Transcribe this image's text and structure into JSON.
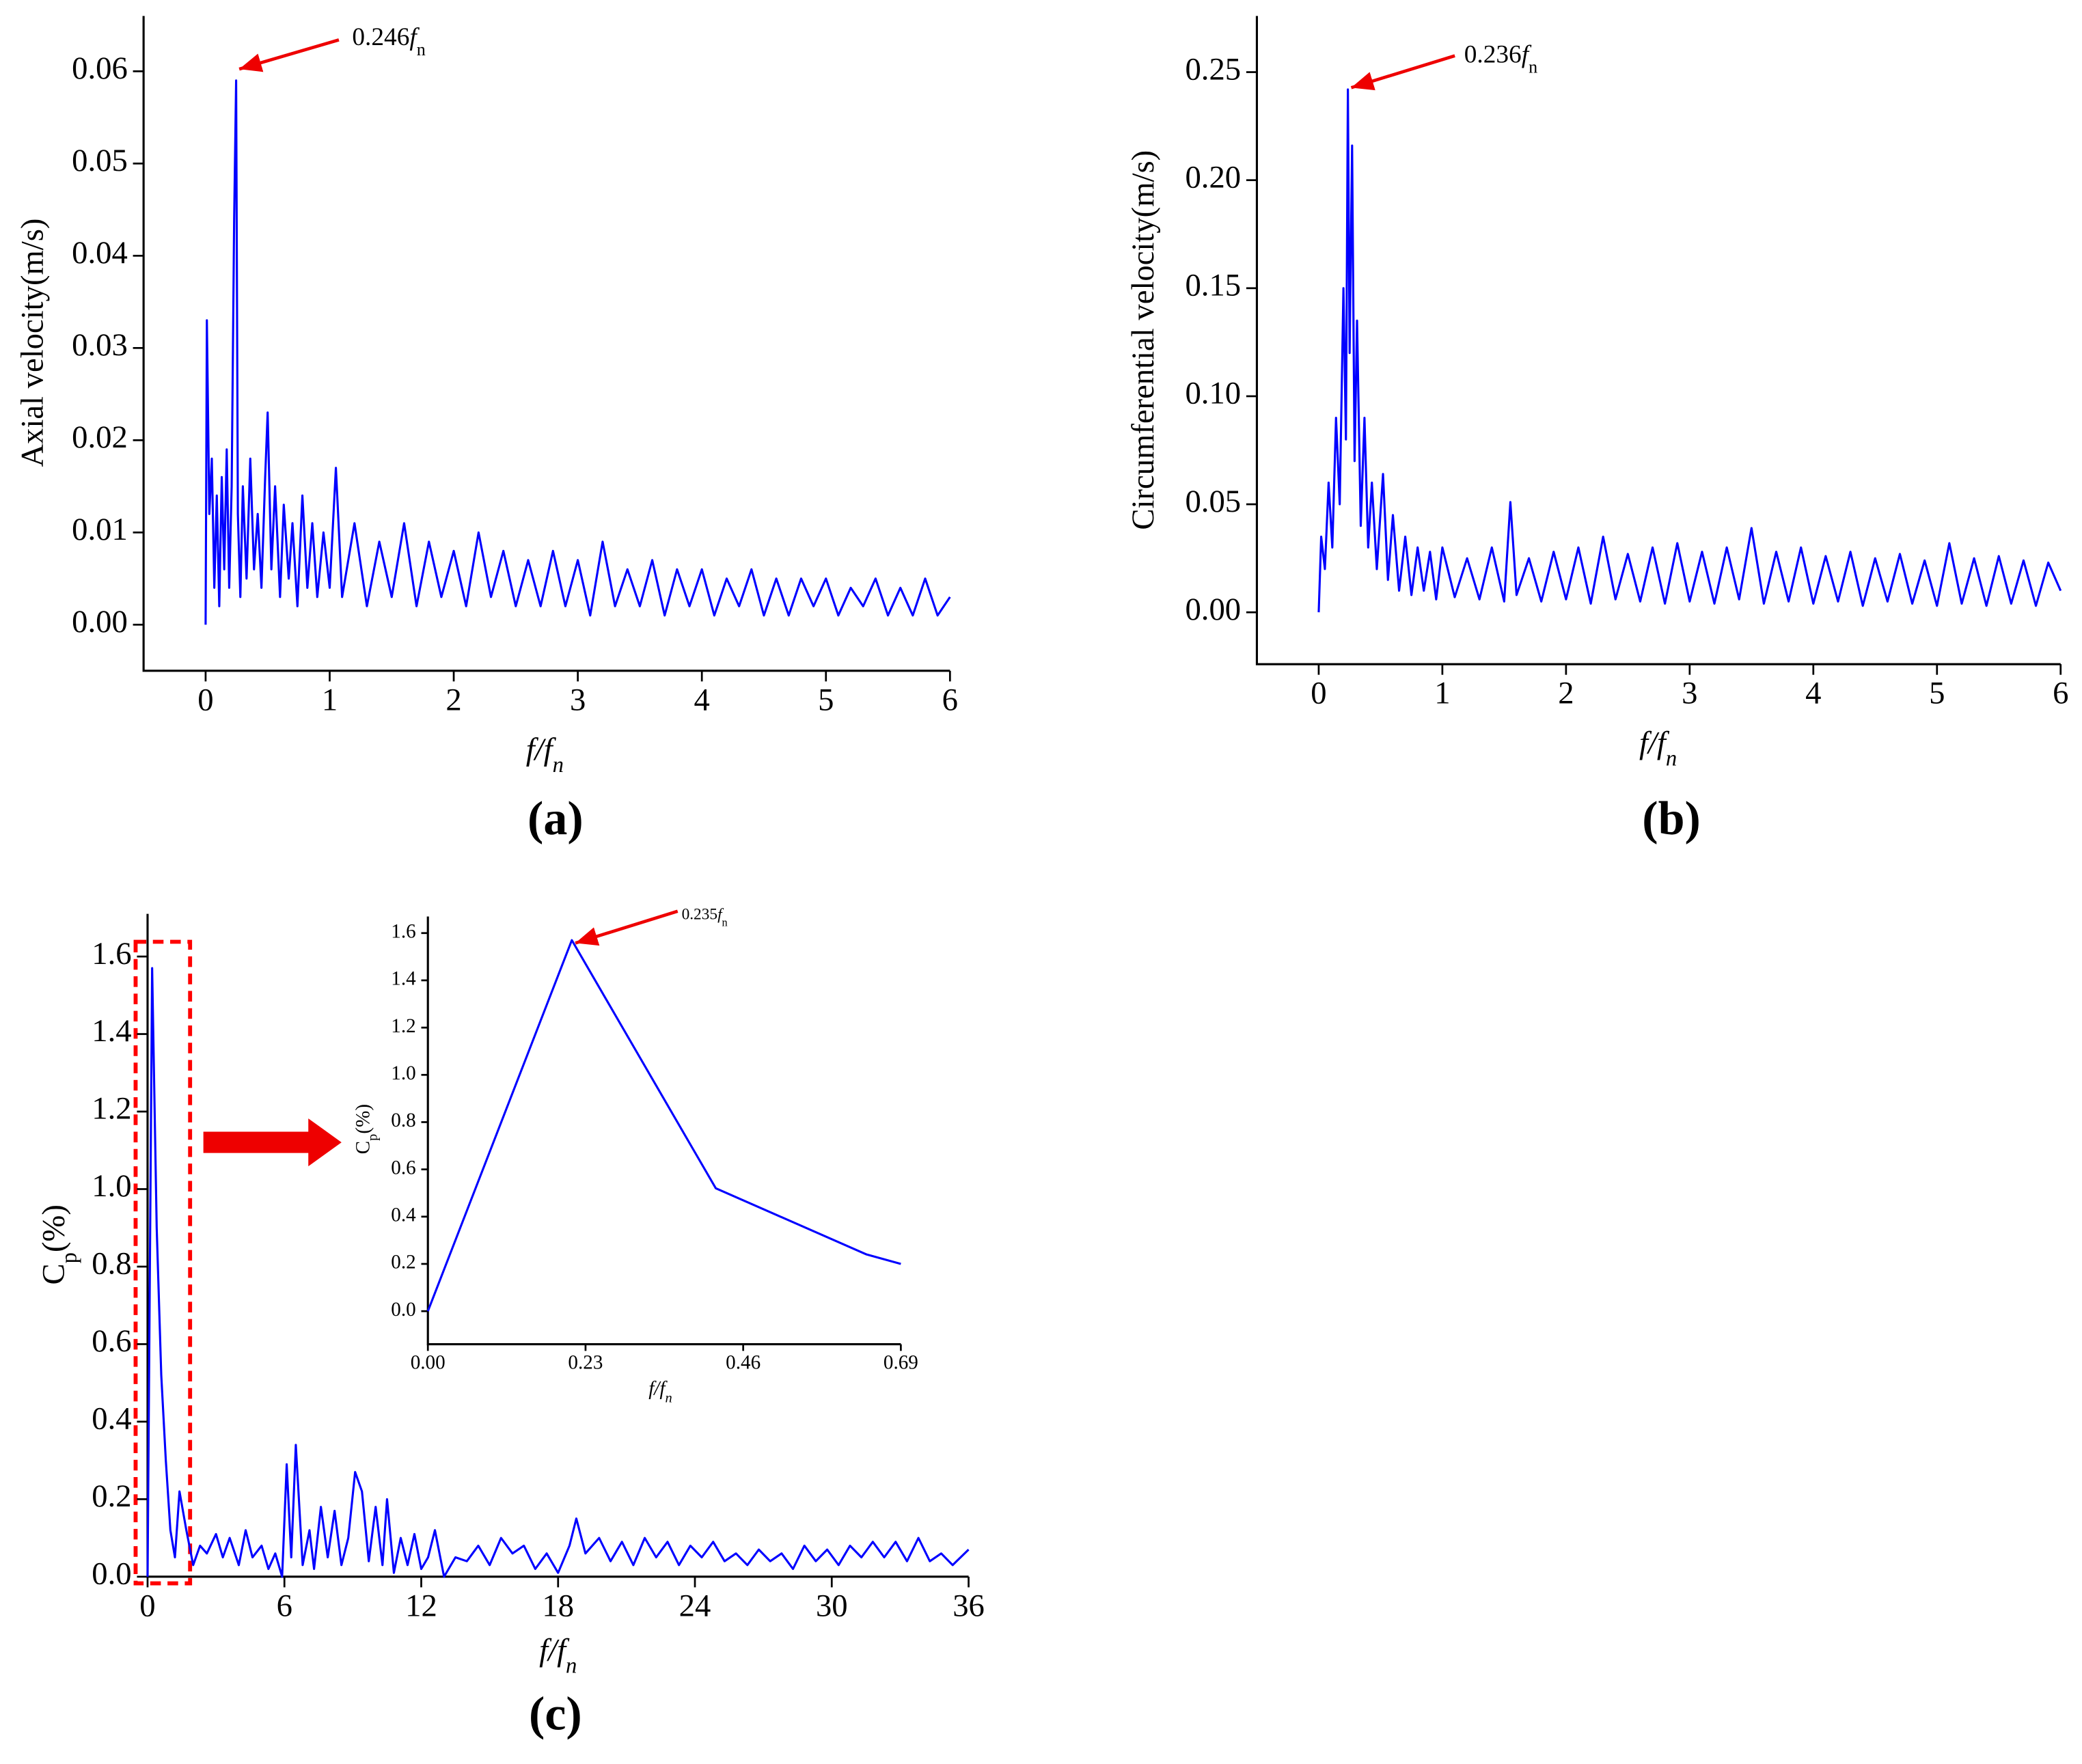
{
  "chart_data": [
    {
      "type": "line",
      "label": "(a)",
      "color": "#0000ff",
      "ylabel": "Axial velocity(m/s)",
      "xlabel": {
        "italic": "f/f",
        "italic_sub": "n"
      },
      "annotation": {
        "text": "0.246",
        "italic": "f",
        "sub": "n"
      },
      "xlim": [
        -0.5,
        6
      ],
      "ylim": [
        -0.005,
        0.066
      ],
      "xticks": [
        0,
        1,
        2,
        3,
        4,
        5,
        6
      ],
      "yticks": [
        {
          "value": 0,
          "label": "0.00"
        },
        {
          "value": 0.01,
          "label": "0.01"
        },
        {
          "value": 0.02,
          "label": "0.02"
        },
        {
          "value": 0.03,
          "label": "0.03"
        },
        {
          "value": 0.04,
          "label": "0.04"
        },
        {
          "value": 0.05,
          "label": "0.05"
        },
        {
          "value": 0.06,
          "label": "0.06"
        }
      ],
      "x": [
        0,
        0.01,
        0.03,
        0.05,
        0.07,
        0.09,
        0.11,
        0.13,
        0.15,
        0.17,
        0.19,
        0.21,
        0.23,
        0.246,
        0.26,
        0.28,
        0.3,
        0.33,
        0.36,
        0.39,
        0.42,
        0.45,
        0.48,
        0.5,
        0.53,
        0.56,
        0.6,
        0.63,
        0.67,
        0.7,
        0.74,
        0.78,
        0.82,
        0.86,
        0.9,
        0.95,
        1.0,
        1.05,
        1.1,
        1.2,
        1.3,
        1.4,
        1.5,
        1.6,
        1.7,
        1.8,
        1.9,
        2.0,
        2.1,
        2.2,
        2.3,
        2.4,
        2.5,
        2.6,
        2.7,
        2.8,
        2.9,
        3.0,
        3.1,
        3.2,
        3.3,
        3.4,
        3.5,
        3.6,
        3.7,
        3.8,
        3.9,
        4.0,
        4.1,
        4.2,
        4.3,
        4.4,
        4.5,
        4.6,
        4.7,
        4.8,
        4.9,
        5.0,
        5.1,
        5.2,
        5.3,
        5.4,
        5.5,
        5.6,
        5.7,
        5.8,
        5.9,
        6.0
      ],
      "values": [
        0,
        0.033,
        0.012,
        0.018,
        0.004,
        0.014,
        0.002,
        0.016,
        0.006,
        0.019,
        0.004,
        0.015,
        0.044,
        0.059,
        0.012,
        0.003,
        0.015,
        0.005,
        0.018,
        0.006,
        0.012,
        0.004,
        0.016,
        0.023,
        0.006,
        0.015,
        0.003,
        0.013,
        0.005,
        0.011,
        0.002,
        0.014,
        0.004,
        0.011,
        0.003,
        0.01,
        0.004,
        0.017,
        0.003,
        0.011,
        0.002,
        0.009,
        0.003,
        0.011,
        0.002,
        0.009,
        0.003,
        0.008,
        0.002,
        0.01,
        0.003,
        0.008,
        0.002,
        0.007,
        0.002,
        0.008,
        0.002,
        0.007,
        0.001,
        0.009,
        0.002,
        0.006,
        0.002,
        0.007,
        0.001,
        0.006,
        0.002,
        0.006,
        0.001,
        0.005,
        0.002,
        0.006,
        0.001,
        0.005,
        0.001,
        0.005,
        0.002,
        0.005,
        0.001,
        0.004,
        0.002,
        0.005,
        0.001,
        0.004,
        0.001,
        0.005,
        0.001,
        0.003
      ]
    },
    {
      "type": "line",
      "label": "(b)",
      "color": "#0000ff",
      "ylabel": "Circumferential velocity(m/s)",
      "xlabel": {
        "italic": "f/f",
        "italic_sub": "n"
      },
      "annotation": {
        "text": "0.236",
        "italic": "f",
        "sub": "n"
      },
      "xlim": [
        -0.5,
        6
      ],
      "ylim": [
        -0.024,
        0.276
      ],
      "xticks": [
        0,
        1,
        2,
        3,
        4,
        5,
        6
      ],
      "yticks": [
        {
          "value": 0,
          "label": "0.00"
        },
        {
          "value": 0.05,
          "label": "0.05"
        },
        {
          "value": 0.1,
          "label": "0.10"
        },
        {
          "value": 0.15,
          "label": "0.15"
        },
        {
          "value": 0.2,
          "label": "0.20"
        },
        {
          "value": 0.25,
          "label": "0.25"
        }
      ],
      "x": [
        0,
        0.02,
        0.05,
        0.08,
        0.11,
        0.14,
        0.17,
        0.2,
        0.22,
        0.236,
        0.25,
        0.27,
        0.29,
        0.31,
        0.34,
        0.37,
        0.4,
        0.43,
        0.47,
        0.52,
        0.56,
        0.6,
        0.65,
        0.7,
        0.75,
        0.8,
        0.85,
        0.9,
        0.95,
        1.0,
        1.1,
        1.2,
        1.3,
        1.4,
        1.5,
        1.55,
        1.6,
        1.7,
        1.8,
        1.9,
        2.0,
        2.1,
        2.2,
        2.3,
        2.4,
        2.5,
        2.6,
        2.7,
        2.8,
        2.9,
        3.0,
        3.1,
        3.2,
        3.3,
        3.4,
        3.5,
        3.6,
        3.7,
        3.8,
        3.9,
        4.0,
        4.1,
        4.2,
        4.3,
        4.4,
        4.5,
        4.6,
        4.7,
        4.8,
        4.9,
        5.0,
        5.1,
        5.2,
        5.3,
        5.4,
        5.5,
        5.6,
        5.7,
        5.8,
        5.9,
        6.0
      ],
      "values": [
        0,
        0.035,
        0.02,
        0.06,
        0.03,
        0.09,
        0.05,
        0.15,
        0.08,
        0.242,
        0.12,
        0.216,
        0.07,
        0.135,
        0.04,
        0.09,
        0.03,
        0.06,
        0.02,
        0.064,
        0.015,
        0.045,
        0.01,
        0.035,
        0.008,
        0.03,
        0.01,
        0.028,
        0.006,
        0.03,
        0.007,
        0.025,
        0.006,
        0.03,
        0.005,
        0.051,
        0.008,
        0.025,
        0.005,
        0.028,
        0.006,
        0.03,
        0.004,
        0.035,
        0.006,
        0.027,
        0.005,
        0.03,
        0.004,
        0.032,
        0.005,
        0.028,
        0.004,
        0.03,
        0.006,
        0.039,
        0.004,
        0.028,
        0.005,
        0.03,
        0.004,
        0.026,
        0.005,
        0.028,
        0.003,
        0.025,
        0.005,
        0.027,
        0.004,
        0.024,
        0.003,
        0.032,
        0.004,
        0.025,
        0.003,
        0.026,
        0.004,
        0.024,
        0.003,
        0.023,
        0.01
      ]
    },
    {
      "type": "line",
      "label": "(c)",
      "color": "#0000ff",
      "ylabel": {
        "text": "C",
        "sub": "p",
        "tail": "(%)"
      },
      "xlabel": {
        "italic": "f/f",
        "italic_sub": "n"
      },
      "xlim": [
        0,
        36
      ],
      "ylim": [
        0,
        1.71
      ],
      "xticks": [
        0,
        6,
        12,
        18,
        24,
        30,
        36
      ],
      "yticks": [
        {
          "value": 0,
          "label": "0.0"
        },
        {
          "value": 0.2,
          "label": "0.2"
        },
        {
          "value": 0.4,
          "label": "0.4"
        },
        {
          "value": 0.6,
          "label": "0.6"
        },
        {
          "value": 0.8,
          "label": "0.8"
        },
        {
          "value": 1,
          "label": "1.0"
        },
        {
          "value": 1.2,
          "label": "1.2"
        },
        {
          "value": 1.4,
          "label": "1.4"
        },
        {
          "value": 1.6,
          "label": "1.6"
        }
      ],
      "x": [
        0,
        0.2,
        0.4,
        0.6,
        0.8,
        1.0,
        1.2,
        1.4,
        1.7,
        2.0,
        2.3,
        2.6,
        3.0,
        3.3,
        3.6,
        4.0,
        4.3,
        4.6,
        5.0,
        5.3,
        5.6,
        5.9,
        6.1,
        6.3,
        6.5,
        6.8,
        7.1,
        7.3,
        7.6,
        7.9,
        8.2,
        8.5,
        8.8,
        9.1,
        9.4,
        9.7,
        10.0,
        10.3,
        10.5,
        10.8,
        11.1,
        11.4,
        11.7,
        12.0,
        12.3,
        12.6,
        13.0,
        13.5,
        14,
        14.5,
        15,
        15.5,
        16,
        16.5,
        17,
        17.5,
        18,
        18.5,
        18.8,
        19.2,
        19.8,
        20.3,
        20.8,
        21.3,
        21.8,
        22.3,
        22.8,
        23.3,
        23.8,
        24.3,
        24.8,
        25.3,
        25.8,
        26.3,
        26.8,
        27.3,
        27.8,
        28.3,
        28.8,
        29.3,
        29.8,
        30.3,
        30.8,
        31.3,
        31.8,
        32.3,
        32.8,
        33.3,
        33.8,
        34.3,
        34.8,
        35.3,
        36
      ],
      "values": [
        0,
        1.57,
        0.9,
        0.52,
        0.3,
        0.12,
        0.05,
        0.22,
        0.12,
        0.03,
        0.08,
        0.06,
        0.11,
        0.05,
        0.1,
        0.03,
        0.12,
        0.05,
        0.08,
        0.02,
        0.06,
        0,
        0.29,
        0.05,
        0.34,
        0.03,
        0.12,
        0.02,
        0.18,
        0.05,
        0.17,
        0.03,
        0.1,
        0.27,
        0.22,
        0.04,
        0.18,
        0.03,
        0.2,
        0.01,
        0.1,
        0.03,
        0.11,
        0.02,
        0.05,
        0.12,
        0,
        0.05,
        0.04,
        0.08,
        0.03,
        0.1,
        0.06,
        0.08,
        0.02,
        0.06,
        0.01,
        0.08,
        0.15,
        0.06,
        0.1,
        0.04,
        0.09,
        0.03,
        0.1,
        0.05,
        0.09,
        0.03,
        0.08,
        0.05,
        0.09,
        0.04,
        0.06,
        0.03,
        0.07,
        0.04,
        0.06,
        0.02,
        0.08,
        0.04,
        0.07,
        0.03,
        0.08,
        0.05,
        0.09,
        0.05,
        0.09,
        0.04,
        0.1,
        0.04,
        0.06,
        0.03,
        0.07
      ]
    },
    {
      "type": "line",
      "color": "#0000ff",
      "ylabel": {
        "text": "C",
        "sub": "p",
        "tail": "(%)"
      },
      "xlabel": {
        "italic": "f/f",
        "italic_sub": "n"
      },
      "annotation": {
        "text": "0.235",
        "italic": "f",
        "sub": "n"
      },
      "xlim": [
        0,
        0.69
      ],
      "ylim": [
        -0.14,
        1.67
      ],
      "xticks": [
        {
          "value": 0,
          "label": "0.00"
        },
        {
          "value": 0.23,
          "label": "0.23"
        },
        {
          "value": 0.46,
          "label": "0.46"
        },
        {
          "value": 0.69,
          "label": "0.69"
        }
      ],
      "yticks": [
        {
          "value": 0,
          "label": "0.0"
        },
        {
          "value": 0.2,
          "label": "0.2"
        },
        {
          "value": 0.4,
          "label": "0.4"
        },
        {
          "value": 0.6,
          "label": "0.6"
        },
        {
          "value": 0.8,
          "label": "0.8"
        },
        {
          "value": 1,
          "label": "1.0"
        },
        {
          "value": 1.2,
          "label": "1.2"
        },
        {
          "value": 1.4,
          "label": "1.4"
        },
        {
          "value": 1.6,
          "label": "1.6"
        }
      ],
      "x": [
        0,
        0.21,
        0.42,
        0.64,
        0.69
      ],
      "values": [
        0,
        1.57,
        0.52,
        0.24,
        0.2
      ]
    }
  ]
}
